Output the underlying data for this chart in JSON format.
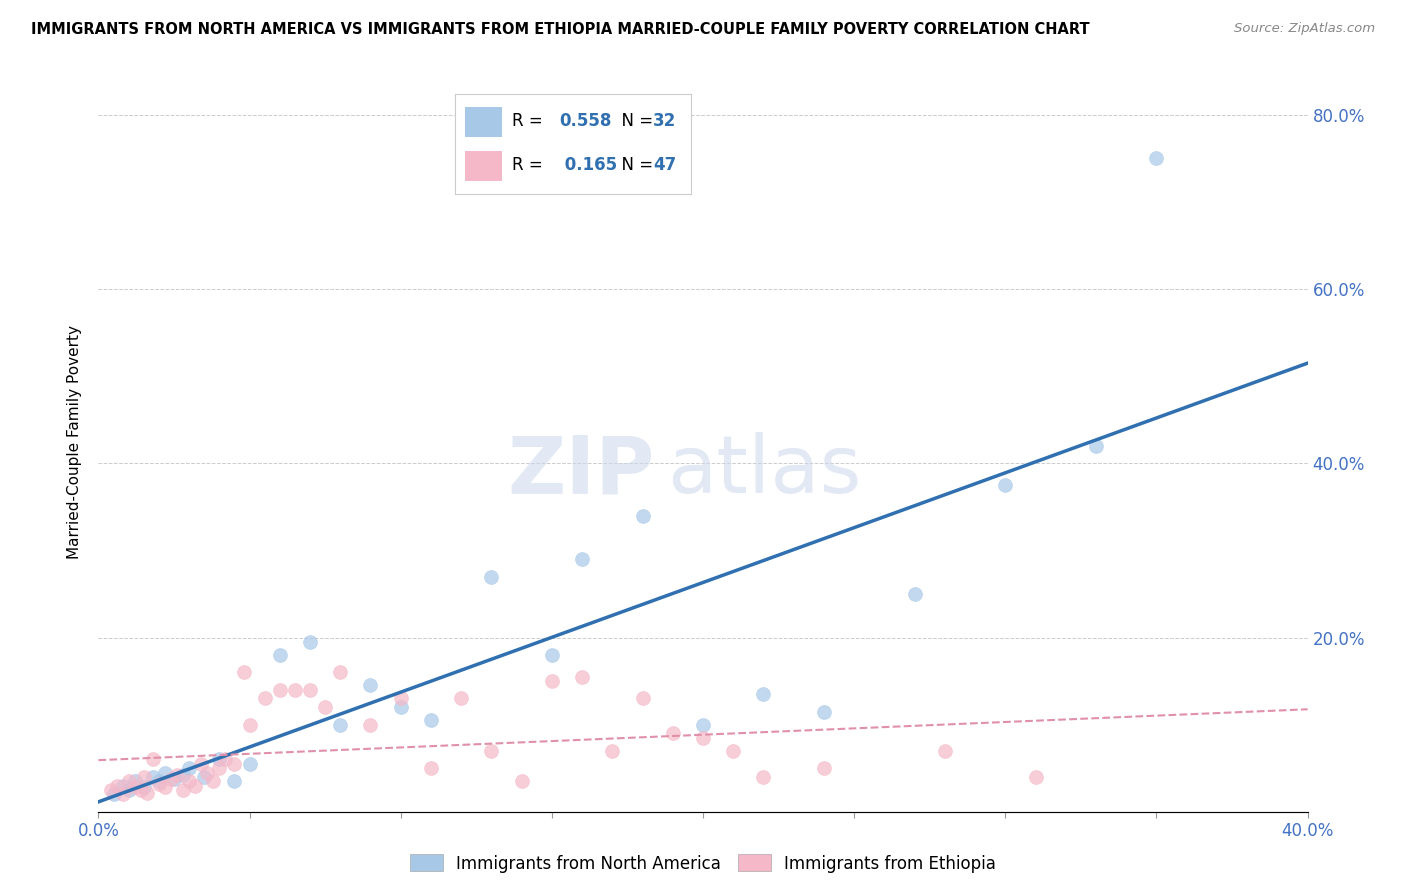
{
  "title": "IMMIGRANTS FROM NORTH AMERICA VS IMMIGRANTS FROM ETHIOPIA MARRIED-COUPLE FAMILY POVERTY CORRELATION CHART",
  "source": "Source: ZipAtlas.com",
  "ylabel": "Married-Couple Family Poverty",
  "xlim": [
    0.0,
    0.4
  ],
  "ylim": [
    0.0,
    0.85
  ],
  "xticks": [
    0.0,
    0.05,
    0.1,
    0.15,
    0.2,
    0.25,
    0.3,
    0.35,
    0.4
  ],
  "xticklabels": [
    "0.0%",
    "",
    "",
    "",
    "",
    "",
    "",
    "",
    "40.0%"
  ],
  "yticks": [
    0.0,
    0.2,
    0.4,
    0.6,
    0.8
  ],
  "yticklabels": [
    "",
    "20.0%",
    "40.0%",
    "60.0%",
    "80.0%"
  ],
  "blue_R": 0.558,
  "blue_N": 32,
  "pink_R": 0.165,
  "pink_N": 47,
  "blue_color": "#a8c8e8",
  "pink_color": "#f4b8c8",
  "blue_line_color": "#3070b0",
  "pink_line_color": "#e090a8",
  "blue_label_color": "#3070b0",
  "blue_scatter_x": [
    0.005,
    0.008,
    0.01,
    0.012,
    0.015,
    0.018,
    0.02,
    0.022,
    0.025,
    0.028,
    0.03,
    0.035,
    0.04,
    0.045,
    0.05,
    0.06,
    0.07,
    0.08,
    0.09,
    0.1,
    0.11,
    0.13,
    0.15,
    0.16,
    0.18,
    0.2,
    0.22,
    0.24,
    0.27,
    0.3,
    0.33,
    0.35
  ],
  "blue_scatter_y": [
    0.02,
    0.03,
    0.025,
    0.035,
    0.028,
    0.04,
    0.035,
    0.045,
    0.038,
    0.042,
    0.05,
    0.04,
    0.06,
    0.035,
    0.055,
    0.18,
    0.195,
    0.1,
    0.145,
    0.12,
    0.105,
    0.27,
    0.18,
    0.29,
    0.34,
    0.1,
    0.135,
    0.115,
    0.25,
    0.375,
    0.42,
    0.75
  ],
  "pink_scatter_x": [
    0.004,
    0.006,
    0.008,
    0.01,
    0.012,
    0.014,
    0.015,
    0.016,
    0.018,
    0.02,
    0.022,
    0.024,
    0.026,
    0.028,
    0.03,
    0.032,
    0.034,
    0.036,
    0.038,
    0.04,
    0.042,
    0.045,
    0.048,
    0.05,
    0.055,
    0.06,
    0.065,
    0.07,
    0.075,
    0.08,
    0.09,
    0.1,
    0.11,
    0.12,
    0.13,
    0.14,
    0.15,
    0.16,
    0.17,
    0.18,
    0.19,
    0.2,
    0.21,
    0.22,
    0.24,
    0.28,
    0.31
  ],
  "pink_scatter_y": [
    0.025,
    0.03,
    0.02,
    0.035,
    0.028,
    0.025,
    0.04,
    0.022,
    0.06,
    0.032,
    0.028,
    0.038,
    0.042,
    0.025,
    0.035,
    0.03,
    0.055,
    0.045,
    0.035,
    0.05,
    0.06,
    0.055,
    0.16,
    0.1,
    0.13,
    0.14,
    0.14,
    0.14,
    0.12,
    0.16,
    0.1,
    0.13,
    0.05,
    0.13,
    0.07,
    0.035,
    0.15,
    0.155,
    0.07,
    0.13,
    0.09,
    0.085,
    0.07,
    0.04,
    0.05,
    0.07,
    0.04
  ],
  "watermark_zip": "ZIP",
  "watermark_atlas": "atlas",
  "background_color": "#ffffff",
  "grid_color": "#cccccc",
  "tick_color": "#4472c4"
}
